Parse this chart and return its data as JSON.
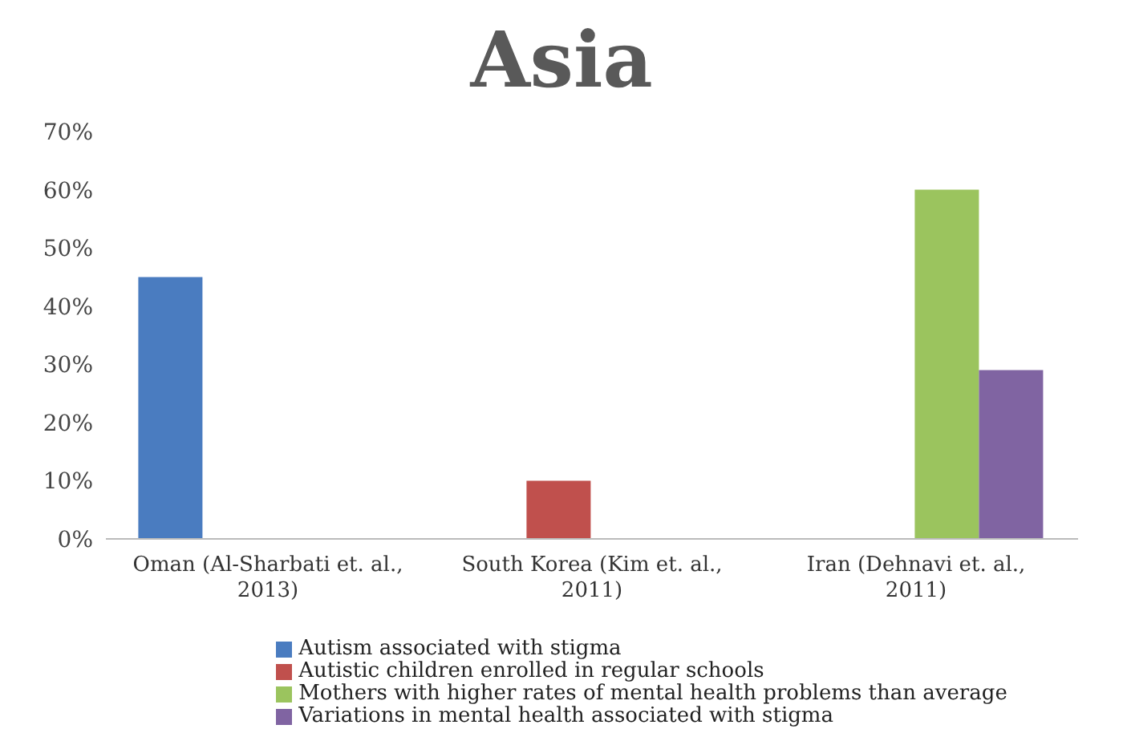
{
  "chart_data": {
    "type": "bar",
    "title": "Asia",
    "categories": [
      "Oman (Al-Sharbati et. al., 2013)",
      "South Korea (Kim et. al., 2011)",
      "Iran (Dehnavi et. al., 2011)"
    ],
    "series": [
      {
        "name": "Autism associated with stigma",
        "color": "#4a7cc0",
        "values": [
          45,
          null,
          null
        ]
      },
      {
        "name": "Autistic children enrolled in regular schools",
        "color": "#c0504d",
        "values": [
          null,
          10,
          null
        ]
      },
      {
        "name": "Mothers with higher rates of mental health problems than average",
        "color": "#9bc45e",
        "values": [
          null,
          null,
          60
        ]
      },
      {
        "name": "Variations in mental health associated with stigma",
        "color": "#8064a2",
        "values": [
          null,
          null,
          29
        ]
      }
    ],
    "ylim": [
      0,
      70
    ],
    "yticks": [
      {
        "value": 0,
        "label": "0%"
      },
      {
        "value": 10,
        "label": "10%"
      },
      {
        "value": 20,
        "label": "20%"
      },
      {
        "value": 30,
        "label": "30%"
      },
      {
        "value": 40,
        "label": "40%"
      },
      {
        "value": 50,
        "label": "50%"
      },
      {
        "value": 60,
        "label": "60%"
      },
      {
        "value": 70,
        "label": "70%"
      }
    ],
    "grid": false,
    "legend": "bottom"
  }
}
